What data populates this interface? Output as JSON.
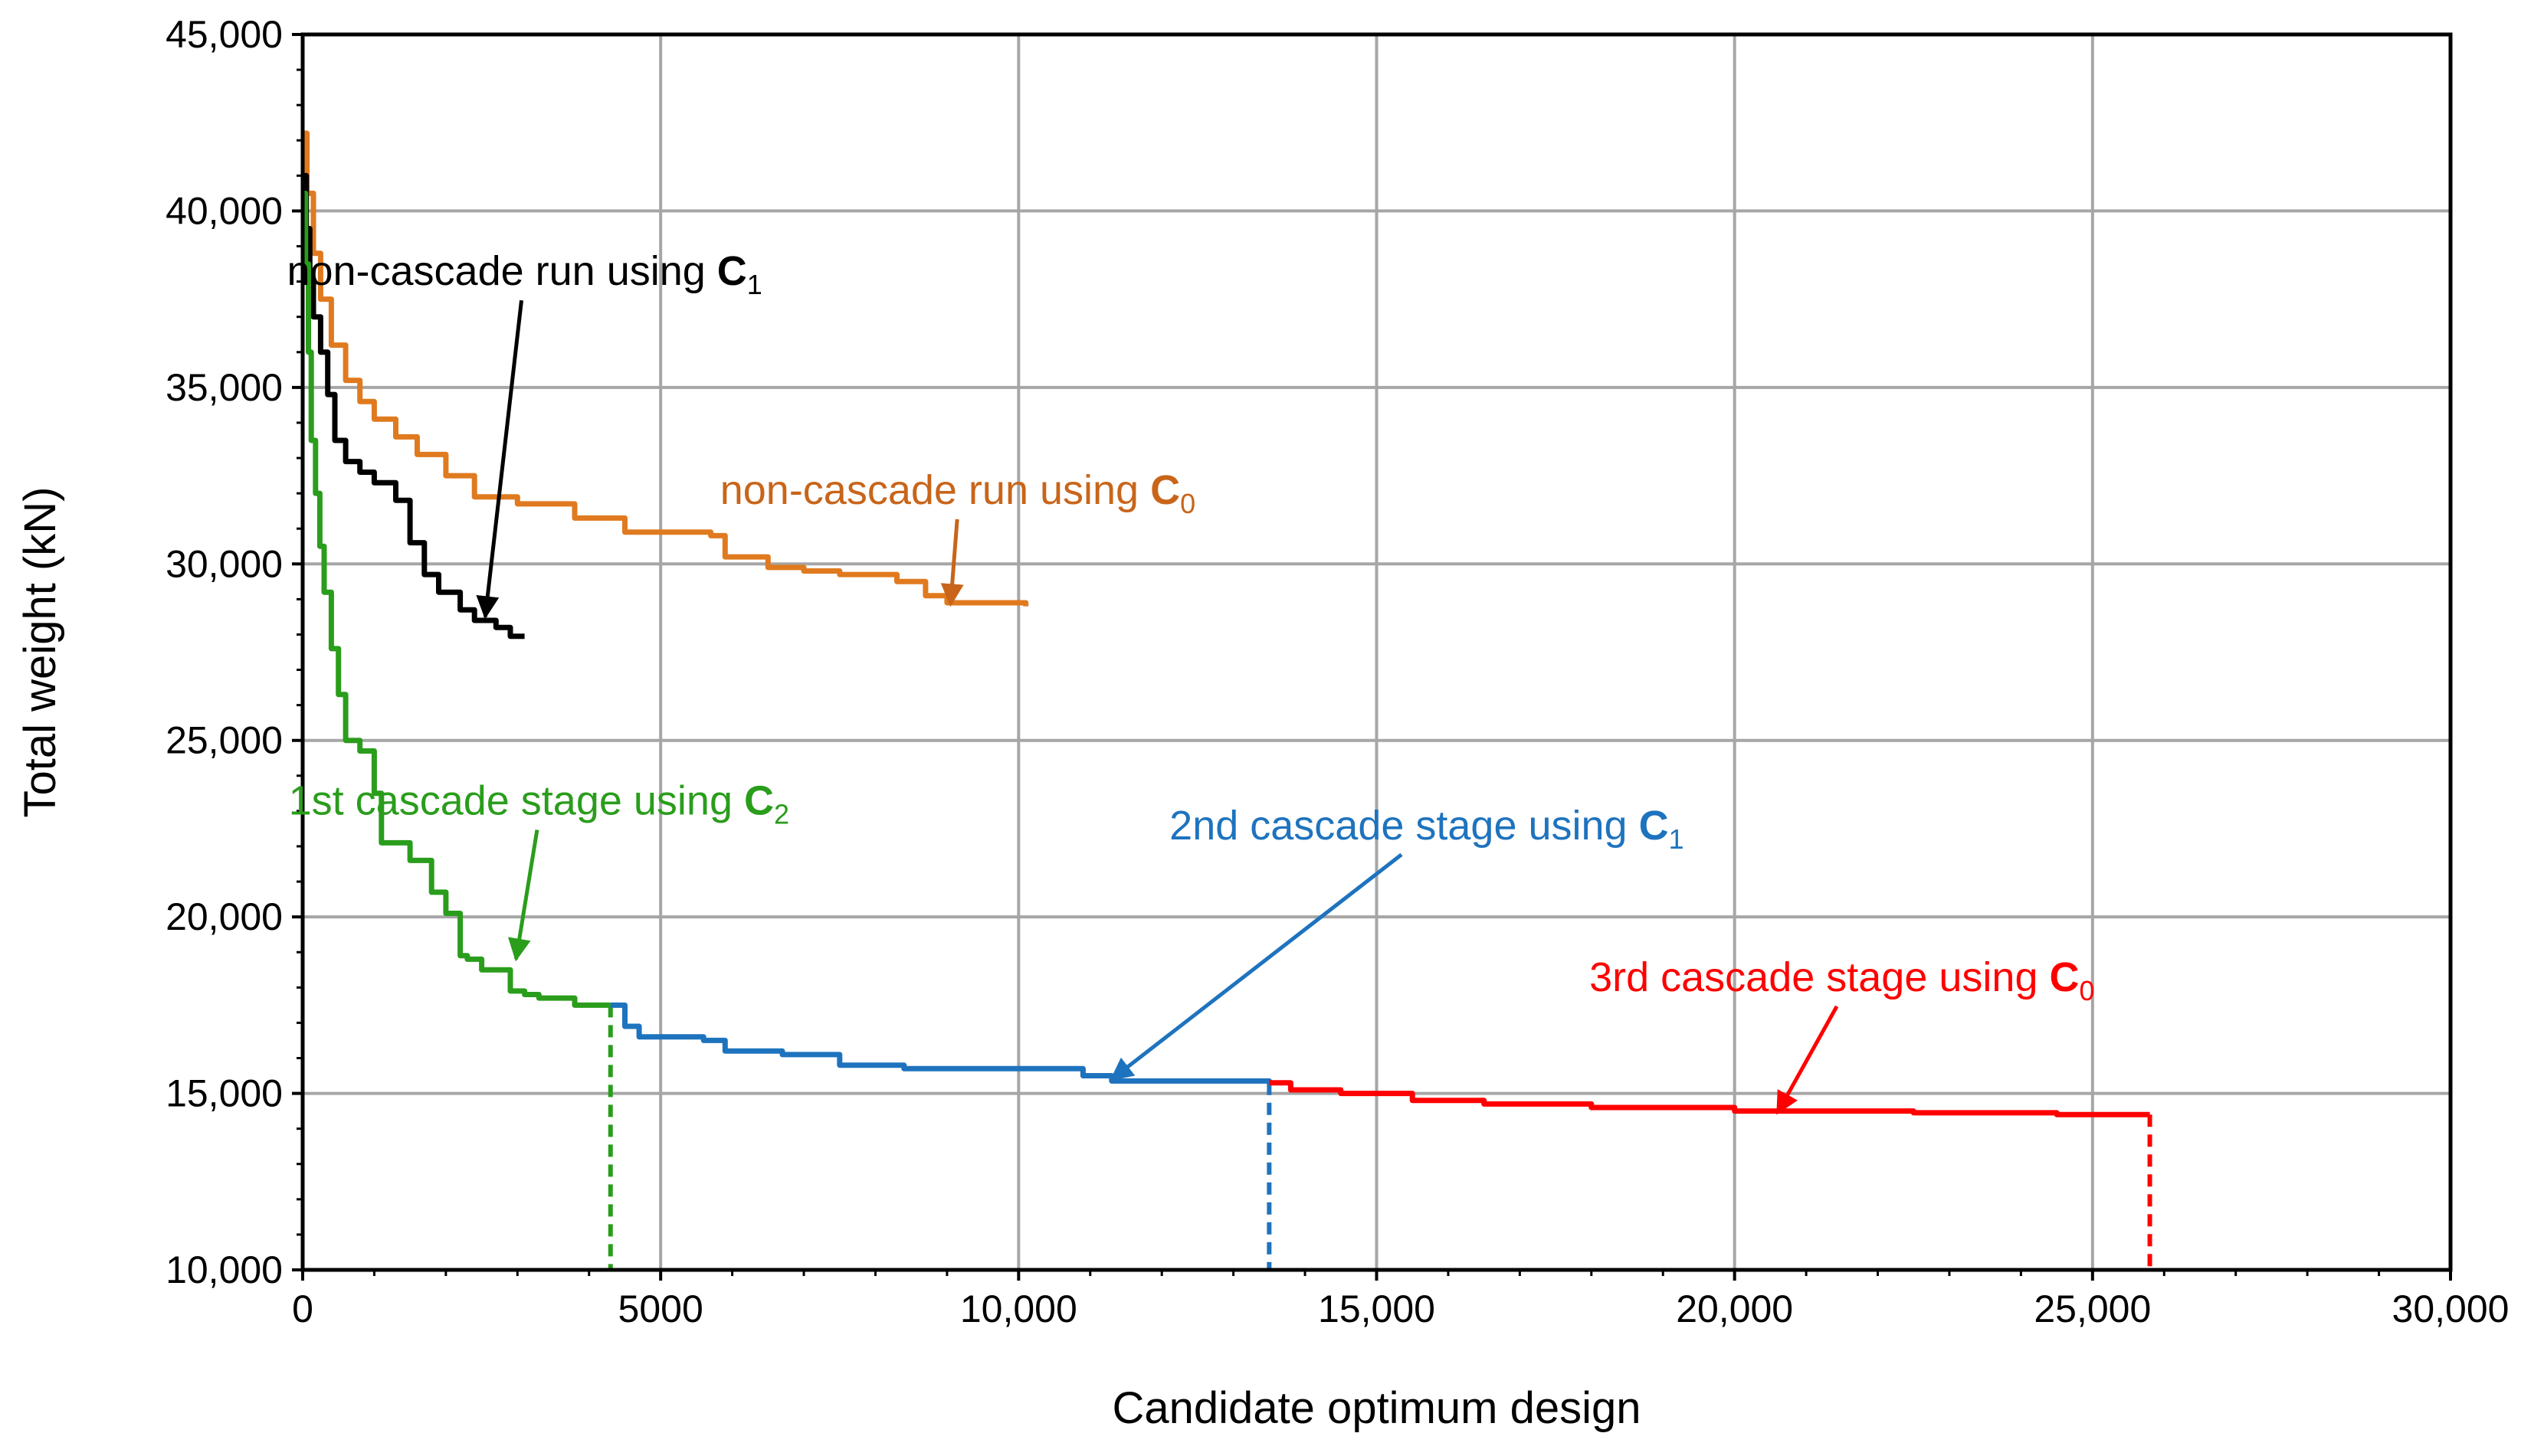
{
  "chart_data": {
    "type": "line",
    "xlabel": "Candidate optimum design",
    "ylabel": "Total weight (kN)",
    "xlim": [
      0,
      30000
    ],
    "ylim": [
      10000,
      45000
    ],
    "x_ticks": [
      {
        "value": 0,
        "label": "0"
      },
      {
        "value": 5000,
        "label": "5000"
      },
      {
        "value": 10000,
        "label": "10,000"
      },
      {
        "value": 15000,
        "label": "15,000"
      },
      {
        "value": 20000,
        "label": "20,000"
      },
      {
        "value": 25000,
        "label": "25,000"
      },
      {
        "value": 30000,
        "label": "30,000"
      }
    ],
    "y_ticks": [
      {
        "value": 10000,
        "label": "10,000"
      },
      {
        "value": 15000,
        "label": "15,000"
      },
      {
        "value": 20000,
        "label": "20,000"
      },
      {
        "value": 25000,
        "label": "25,000"
      },
      {
        "value": 30000,
        "label": "30,000"
      },
      {
        "value": 35000,
        "label": "35,000"
      },
      {
        "value": 40000,
        "label": "40,000"
      },
      {
        "value": 45000,
        "label": "45,000"
      }
    ],
    "grid": true,
    "series": [
      {
        "name": "non-cascade run using C0",
        "color": "#E07A1F",
        "step": true,
        "x": [
          0,
          60,
          150,
          250,
          400,
          600,
          800,
          1000,
          1300,
          1600,
          2000,
          2400,
          3000,
          3800,
          4500,
          5700,
          5900,
          6500,
          7000,
          7500,
          8300,
          8700,
          9000,
          10100
        ],
        "y": [
          42200,
          40500,
          38800,
          37500,
          36200,
          35200,
          34600,
          34100,
          33600,
          33100,
          32500,
          31900,
          31700,
          31300,
          30900,
          30800,
          30200,
          29900,
          29800,
          29700,
          29500,
          29100,
          28900,
          28800
        ]
      },
      {
        "name": "non-cascade run using C1",
        "color": "#000000",
        "step": true,
        "x": [
          0,
          50,
          100,
          150,
          250,
          350,
          450,
          600,
          800,
          1000,
          1300,
          1500,
          1700,
          1900,
          2200,
          2400,
          2700,
          2900,
          3100
        ],
        "y": [
          41000,
          39500,
          38000,
          37000,
          36000,
          34800,
          33500,
          32900,
          32600,
          32300,
          31800,
          30600,
          29700,
          29200,
          28700,
          28400,
          28200,
          27950,
          27950
        ]
      },
      {
        "name": "1st cascade stage using C2",
        "color": "#2A9D1C",
        "step": true,
        "x": [
          0,
          40,
          80,
          120,
          180,
          240,
          300,
          400,
          500,
          600,
          800,
          1000,
          1100,
          1500,
          1800,
          2000,
          2200,
          2300,
          2500,
          2900,
          3100,
          3300,
          3800,
          4300
        ],
        "y": [
          40500,
          38500,
          36000,
          33500,
          32000,
          30500,
          29200,
          27600,
          26300,
          25000,
          24700,
          23500,
          22100,
          21600,
          20700,
          20100,
          18900,
          18800,
          18500,
          17900,
          17800,
          17700,
          17500,
          17500
        ]
      },
      {
        "name": "2nd cascade stage using C1",
        "color": "#1E73BE",
        "step": true,
        "x": [
          4300,
          4500,
          4700,
          5600,
          5900,
          6700,
          7500,
          8400,
          10500,
          10900,
          11300,
          13500
        ],
        "y": [
          17500,
          16900,
          16600,
          16500,
          16200,
          16100,
          15800,
          15700,
          15700,
          15500,
          15350,
          15300
        ]
      },
      {
        "name": "3rd cascade stage using C0",
        "color": "#FF0000",
        "step": true,
        "x": [
          13500,
          13800,
          14500,
          15500,
          16500,
          18000,
          20000,
          22500,
          24500,
          25800
        ],
        "y": [
          15300,
          15100,
          15000,
          14800,
          14700,
          14600,
          14500,
          14450,
          14400,
          14400
        ]
      }
    ],
    "stage_markers": [
      {
        "x": 4300,
        "y_top": 17500,
        "color": "#2A9D1C"
      },
      {
        "x": 13500,
        "y_top": 15300,
        "color": "#1E73BE"
      },
      {
        "x": 25800,
        "y_top": 14400,
        "color": "#FF0000"
      }
    ],
    "annotations": [
      {
        "name": "annot-c1-noncascade",
        "text": "non-cascade run using ",
        "bold": "C",
        "sub": "1",
        "color": "#000000",
        "x": 3100,
        "y": 37900,
        "arrow_to": [
          2550,
          28500
        ]
      },
      {
        "name": "annot-c0-noncascade",
        "text": "non-cascade run using ",
        "bold": "C",
        "sub": "0",
        "color": "#C8651A",
        "x": 9150,
        "y": 31700,
        "arrow_to": [
          9050,
          28850
        ]
      },
      {
        "name": "annot-stage1",
        "text": "1st cascade stage using ",
        "bold": "C",
        "sub": "2",
        "color": "#2A9D1C",
        "x": 3300,
        "y": 22900,
        "arrow_to": [
          2980,
          18800
        ]
      },
      {
        "name": "annot-stage2",
        "text": "2nd cascade stage using ",
        "bold": "C",
        "sub": "1",
        "color": "#1E73BE",
        "x": 15700,
        "y": 22200,
        "arrow_to": [
          11300,
          15400
        ]
      },
      {
        "name": "annot-stage3",
        "text": "3rd cascade stage using ",
        "bold": "C",
        "sub": "0",
        "color": "#FF0000",
        "x": 21500,
        "y": 17900,
        "arrow_to": [
          20600,
          14450
        ]
      }
    ]
  }
}
